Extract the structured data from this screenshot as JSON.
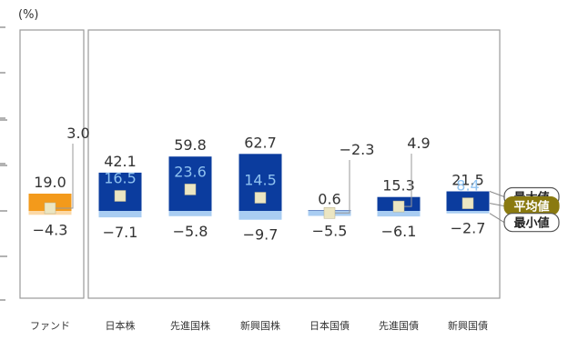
{
  "chart_data": {
    "type": "bar",
    "unit_label": "(%)",
    "categories": [
      "ファンド",
      "日本株",
      "先進国株",
      "新興国株",
      "日本国債",
      "先進国債",
      "新興国債"
    ],
    "series": [
      {
        "name": "最大値",
        "values": [
          19.0,
          42.1,
          59.8,
          62.7,
          0.6,
          15.3,
          21.5
        ]
      },
      {
        "name": "平均値",
        "values": [
          3.0,
          16.5,
          23.6,
          14.5,
          -2.3,
          4.9,
          8.4
        ]
      },
      {
        "name": "最小値",
        "values": [
          -4.3,
          -7.1,
          -5.8,
          -9.7,
          -5.5,
          -6.1,
          -2.7
        ]
      }
    ],
    "max_labels": [
      "19.0",
      "42.1",
      "59.8",
      "62.7",
      "0.6",
      "15.3",
      "21.5"
    ],
    "avg_labels": [
      "3.0",
      "16.5",
      "23.6",
      "14.5",
      "−2.3",
      "4.9",
      "8.4"
    ],
    "min_labels": [
      "−4.3",
      "−7.1",
      "−5.8",
      "−9.7",
      "−5.5",
      "−6.1",
      "−2.7"
    ],
    "ylim": [
      -60,
      100
    ],
    "grid": false,
    "legend": [
      "最大値",
      "平均値",
      "最小値"
    ],
    "legend_position": "right"
  },
  "colors": {
    "fund_max": "#f39a1b",
    "fund_min": "#fcd9a6",
    "asset_max": "#0b3c9e",
    "asset_min": "#a9cdf2",
    "avg_marker": "#ece6c2",
    "avg_badge": "#8a7a10",
    "frame": "#9a9a9a",
    "text": "#333333"
  }
}
